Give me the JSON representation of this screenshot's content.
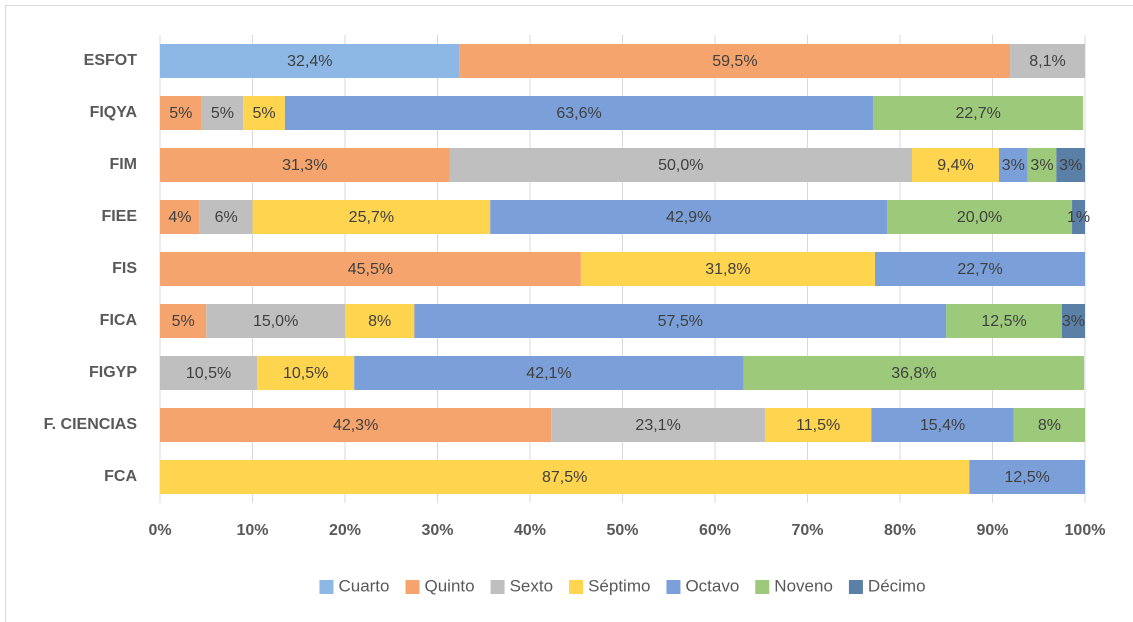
{
  "chart_data": {
    "type": "stacked_barh_percent",
    "categories": [
      "ESFOT",
      "FIQYA",
      "FIM",
      "FIEE",
      "FIS",
      "FICA",
      "FIGYP",
      "F. CIENCIAS",
      "FCA"
    ],
    "series": [
      {
        "name": "Cuarto",
        "color": "#8db8e6",
        "values": [
          32.4,
          null,
          null,
          null,
          null,
          null,
          null,
          null,
          null
        ],
        "value_labels": [
          "32,4%",
          null,
          null,
          null,
          null,
          null,
          null,
          null,
          null
        ]
      },
      {
        "name": "Quinto",
        "color": "#f4a46c",
        "values": [
          59.5,
          4.5,
          31.3,
          4.3,
          45.5,
          5.0,
          null,
          42.3,
          null
        ],
        "value_labels": [
          "59,5%",
          "5%",
          "31,3%",
          "4%",
          "45,5%",
          "5%",
          null,
          "42,3%",
          null
        ]
      },
      {
        "name": "Sexto",
        "color": "#bfbfbf",
        "values": [
          8.1,
          4.5,
          50.0,
          5.7,
          null,
          15.0,
          10.5,
          23.1,
          null
        ],
        "value_labels": [
          "8,1%",
          "5%",
          "50,0%",
          "6%",
          null,
          "15,0%",
          "10,5%",
          "23,1%",
          null
        ]
      },
      {
        "name": "Séptimo",
        "color": "#ffd44f",
        "values": [
          null,
          4.5,
          9.4,
          25.7,
          31.8,
          7.5,
          10.5,
          11.5,
          87.5
        ],
        "value_labels": [
          null,
          "5%",
          "9,4%",
          "25,7%",
          "31,8%",
          "8%",
          "10,5%",
          "11,5%",
          "87,5%"
        ]
      },
      {
        "name": "Octavo",
        "color": "#7b9fd8",
        "values": [
          null,
          63.6,
          3.1,
          42.9,
          22.7,
          57.5,
          42.1,
          15.4,
          12.5
        ],
        "value_labels": [
          null,
          "63,6%",
          "3%",
          "42,9%",
          "22,7%",
          "57,5%",
          "42,1%",
          "15,4%",
          "12,5%"
        ]
      },
      {
        "name": "Noveno",
        "color": "#9cc97a",
        "values": [
          null,
          22.7,
          3.1,
          20.0,
          null,
          12.5,
          36.8,
          7.7,
          null
        ],
        "value_labels": [
          null,
          "22,7%",
          "3%",
          "20,0%",
          null,
          "12,5%",
          "36,8%",
          "8%",
          null
        ]
      },
      {
        "name": "Décimo",
        "color": "#5b80a8",
        "values": [
          null,
          null,
          3.1,
          1.4,
          null,
          2.5,
          null,
          null,
          null
        ],
        "value_labels": [
          null,
          null,
          "3%",
          "1%",
          null,
          "3%",
          null,
          null,
          null
        ]
      }
    ],
    "xlim": [
      0,
      100
    ],
    "xticks": [
      {
        "value": 0,
        "label": "0%"
      },
      {
        "value": 10,
        "label": "10%"
      },
      {
        "value": 20,
        "label": "20%"
      },
      {
        "value": 30,
        "label": "30%"
      },
      {
        "value": 40,
        "label": "40%"
      },
      {
        "value": 50,
        "label": "50%"
      },
      {
        "value": 60,
        "label": "60%"
      },
      {
        "value": 70,
        "label": "70%"
      },
      {
        "value": 80,
        "label": "80%"
      },
      {
        "value": 90,
        "label": "90%"
      },
      {
        "value": 100,
        "label": "100%"
      }
    ],
    "grid": true,
    "legend": "bottom"
  }
}
